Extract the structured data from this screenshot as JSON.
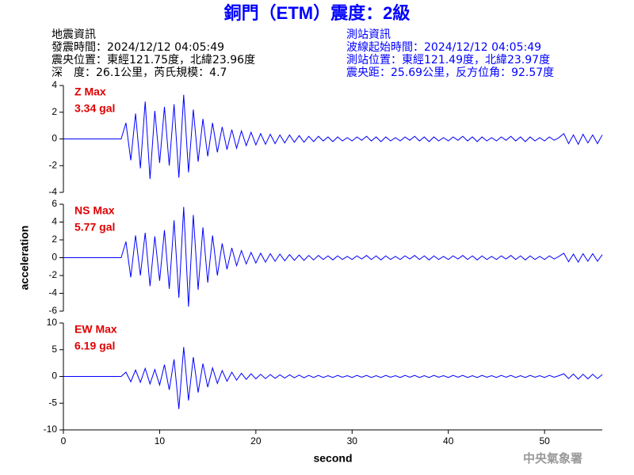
{
  "header": {
    "title": "銅門（ETM）震度：2級",
    "left_lines": [
      "地震資訊",
      "發震時間：2024/12/12 04:05:49",
      "震央位置：東經121.75度，北緯23.96度",
      "深　度：26.1公里，芮氏規模：4.7"
    ],
    "right_lines": [
      "測站資訊",
      "波線起始時間：2024/12/12 04:05:49",
      "測站位置：東經121.49度，北緯23.97度",
      "震央距：25.69公里，反方位角：92.57度"
    ],
    "footer": "中央氣象署"
  },
  "chart_data": [
    {
      "type": "line",
      "max_label": "Z Max",
      "max_value_label": "3.34 gal",
      "color": "#0000ff",
      "xlim": [
        0,
        56
      ],
      "ylim": [
        -4,
        4
      ],
      "yticks": [
        -4,
        -2,
        0,
        2,
        4
      ],
      "x": [
        0,
        0.5,
        1,
        1.5,
        2,
        2.5,
        3,
        3.5,
        4,
        4.5,
        5,
        5.5,
        6,
        6.5,
        7,
        7.5,
        8,
        8.5,
        9,
        9.5,
        10,
        10.5,
        11,
        11.5,
        12,
        12.5,
        13,
        13.5,
        14,
        14.5,
        15,
        15.5,
        16,
        16.5,
        17,
        17.5,
        18,
        18.5,
        19,
        19.5,
        20,
        20.5,
        21,
        21.5,
        22,
        22.5,
        23,
        23.5,
        24,
        24.5,
        25,
        25.5,
        26,
        26.5,
        27,
        27.5,
        28,
        28.5,
        29,
        29.5,
        30,
        30.5,
        31,
        31.5,
        32,
        32.5,
        33,
        33.5,
        34,
        34.5,
        35,
        35.5,
        36,
        36.5,
        37,
        37.5,
        38,
        38.5,
        39,
        39.5,
        40,
        40.5,
        41,
        41.5,
        42,
        42.5,
        43,
        43.5,
        44,
        44.5,
        45,
        45.5,
        46,
        46.5,
        47,
        47.5,
        48,
        48.5,
        49,
        49.5,
        50,
        50.5,
        51,
        51.5,
        52,
        52.5,
        53,
        53.5,
        54,
        54.5,
        55,
        55.5,
        56
      ],
      "values": [
        0,
        0,
        0,
        0,
        0,
        0,
        0,
        0,
        0,
        0,
        0,
        0,
        0,
        1.2,
        -1.6,
        1.9,
        -2.2,
        2.8,
        -3.0,
        2.1,
        -1.8,
        2.4,
        -2.0,
        2.6,
        -2.9,
        3.3,
        -2.5,
        2.2,
        -1.7,
        1.5,
        -1.3,
        1.2,
        -1.0,
        0.9,
        -0.8,
        0.7,
        -0.7,
        0.6,
        -0.5,
        0.5,
        -0.45,
        0.4,
        -0.4,
        0.35,
        -0.35,
        0.3,
        -0.3,
        0.3,
        -0.25,
        0.25,
        -0.25,
        0.2,
        -0.2,
        0.2,
        -0.15,
        0.15,
        -0.2,
        0.15,
        -0.15,
        0.1,
        -0.15,
        0.15,
        -0.1,
        0.2,
        -0.15,
        0.15,
        -0.2,
        0.15,
        -0.15,
        0.1,
        -0.15,
        0.15,
        -0.1,
        0.2,
        -0.15,
        0.15,
        -0.2,
        0.15,
        -0.15,
        0.1,
        -0.15,
        0.15,
        -0.1,
        0.2,
        -0.15,
        0.15,
        -0.2,
        0.15,
        -0.15,
        0.1,
        -0.15,
        0.15,
        -0.1,
        0.2,
        -0.15,
        0.15,
        -0.2,
        0.15,
        -0.15,
        0.1,
        -0.15,
        0.15,
        -0.1,
        0.1,
        0.4,
        -0.35,
        0.3,
        -0.4,
        0.35,
        -0.3,
        0.3,
        -0.35,
        0.3
      ]
    },
    {
      "type": "line",
      "max_label": "NS Max",
      "max_value_label": "5.77 gal",
      "color": "#0000ff",
      "ylabel": "acceleration",
      "xlim": [
        0,
        56
      ],
      "ylim": [
        -6,
        6
      ],
      "yticks": [
        -6,
        -4,
        -2,
        0,
        2,
        4,
        6
      ],
      "x": [
        0,
        0.5,
        1,
        1.5,
        2,
        2.5,
        3,
        3.5,
        4,
        4.5,
        5,
        5.5,
        6,
        6.5,
        7,
        7.5,
        8,
        8.5,
        9,
        9.5,
        10,
        10.5,
        11,
        11.5,
        12,
        12.5,
        13,
        13.5,
        14,
        14.5,
        15,
        15.5,
        16,
        16.5,
        17,
        17.5,
        18,
        18.5,
        19,
        19.5,
        20,
        20.5,
        21,
        21.5,
        22,
        22.5,
        23,
        23.5,
        24,
        24.5,
        25,
        25.5,
        26,
        26.5,
        27,
        27.5,
        28,
        28.5,
        29,
        29.5,
        30,
        30.5,
        31,
        31.5,
        32,
        32.5,
        33,
        33.5,
        34,
        34.5,
        35,
        35.5,
        36,
        36.5,
        37,
        37.5,
        38,
        38.5,
        39,
        39.5,
        40,
        40.5,
        41,
        41.5,
        42,
        42.5,
        43,
        43.5,
        44,
        44.5,
        45,
        45.5,
        46,
        46.5,
        47,
        47.5,
        48,
        48.5,
        49,
        49.5,
        50,
        50.5,
        51,
        51.5,
        52,
        52.5,
        53,
        53.5,
        54,
        54.5,
        55,
        55.5,
        56
      ],
      "values": [
        0,
        0,
        0,
        0,
        0,
        0,
        0,
        0,
        0,
        0,
        0,
        0,
        0,
        1.8,
        -2.2,
        2.5,
        -2.0,
        2.8,
        -3.2,
        2.4,
        -2.6,
        3.1,
        -3.5,
        4.2,
        -4.5,
        5.7,
        -5.5,
        4.8,
        -3.6,
        3.4,
        -2.8,
        2.5,
        -2.0,
        1.6,
        -1.3,
        1.1,
        -0.9,
        0.8,
        -0.7,
        0.6,
        -0.6,
        0.5,
        -0.5,
        0.45,
        -0.4,
        0.4,
        -0.35,
        0.35,
        -0.3,
        0.3,
        -0.3,
        0.25,
        -0.25,
        0.25,
        -0.2,
        0.2,
        -0.25,
        0.2,
        -0.2,
        0.15,
        -0.2,
        0.2,
        -0.15,
        0.25,
        -0.2,
        0.2,
        -0.25,
        0.2,
        -0.2,
        0.15,
        -0.2,
        0.2,
        -0.15,
        0.25,
        -0.2,
        0.2,
        -0.25,
        0.2,
        -0.2,
        0.15,
        -0.2,
        0.2,
        -0.15,
        0.25,
        -0.2,
        0.2,
        -0.25,
        0.2,
        -0.2,
        0.15,
        -0.2,
        0.2,
        -0.15,
        0.25,
        -0.2,
        0.2,
        -0.25,
        0.2,
        -0.2,
        0.15,
        -0.2,
        0.2,
        -0.15,
        0.15,
        0.5,
        -0.45,
        0.4,
        -0.5,
        0.45,
        -0.4,
        0.45,
        -0.4,
        0.35
      ]
    },
    {
      "type": "line",
      "max_label": "EW Max",
      "max_value_label": "6.19 gal",
      "color": "#0000ff",
      "xlabel": "second",
      "xlim": [
        0,
        56
      ],
      "xticks": [
        0,
        10,
        20,
        30,
        40,
        50
      ],
      "ylim": [
        -10,
        10
      ],
      "yticks": [
        -10,
        -5,
        0,
        5,
        10
      ],
      "x": [
        0,
        0.5,
        1,
        1.5,
        2,
        2.5,
        3,
        3.5,
        4,
        4.5,
        5,
        5.5,
        6,
        6.5,
        7,
        7.5,
        8,
        8.5,
        9,
        9.5,
        10,
        10.5,
        11,
        11.5,
        12,
        12.5,
        13,
        13.5,
        14,
        14.5,
        15,
        15.5,
        16,
        16.5,
        17,
        17.5,
        18,
        18.5,
        19,
        19.5,
        20,
        20.5,
        21,
        21.5,
        22,
        22.5,
        23,
        23.5,
        24,
        24.5,
        25,
        25.5,
        26,
        26.5,
        27,
        27.5,
        28,
        28.5,
        29,
        29.5,
        30,
        30.5,
        31,
        31.5,
        32,
        32.5,
        33,
        33.5,
        34,
        34.5,
        35,
        35.5,
        36,
        36.5,
        37,
        37.5,
        38,
        38.5,
        39,
        39.5,
        40,
        40.5,
        41,
        41.5,
        42,
        42.5,
        43,
        43.5,
        44,
        44.5,
        45,
        45.5,
        46,
        46.5,
        47,
        47.5,
        48,
        48.5,
        49,
        49.5,
        50,
        50.5,
        51,
        51.5,
        52,
        52.5,
        53,
        53.5,
        54,
        54.5,
        55,
        55.5,
        56
      ],
      "values": [
        0,
        0,
        0,
        0,
        0,
        0,
        0,
        0,
        0,
        0,
        0,
        0,
        0,
        0.8,
        -1.0,
        1.2,
        -1.1,
        1.5,
        -1.4,
        1.3,
        -1.6,
        2.2,
        -2.5,
        3.2,
        -6.1,
        5.5,
        -4.5,
        3.6,
        -3.0,
        2.4,
        -2.0,
        1.6,
        -1.3,
        1.1,
        -0.9,
        0.8,
        -0.7,
        0.6,
        -0.55,
        0.5,
        -0.45,
        0.4,
        -0.4,
        0.35,
        -0.35,
        0.3,
        -0.3,
        0.3,
        -0.25,
        0.25,
        -0.25,
        0.2,
        -0.2,
        0.2,
        -0.2,
        0.15,
        -0.2,
        0.2,
        -0.15,
        0.15,
        -0.2,
        0.2,
        -0.15,
        0.2,
        -0.2,
        0.15,
        -0.2,
        0.2,
        -0.15,
        0.15,
        -0.2,
        0.2,
        -0.15,
        0.2,
        -0.2,
        0.15,
        -0.2,
        0.2,
        -0.15,
        0.15,
        -0.2,
        0.2,
        -0.15,
        0.2,
        -0.2,
        0.15,
        -0.2,
        0.2,
        -0.15,
        0.15,
        -0.2,
        0.2,
        -0.15,
        0.2,
        -0.2,
        0.15,
        -0.2,
        0.2,
        -0.15,
        0.15,
        -0.2,
        0.2,
        -0.15,
        0.15,
        0.5,
        -0.4,
        0.45,
        -0.5,
        0.4,
        -0.45,
        0.4,
        -0.4,
        0.35
      ]
    }
  ]
}
